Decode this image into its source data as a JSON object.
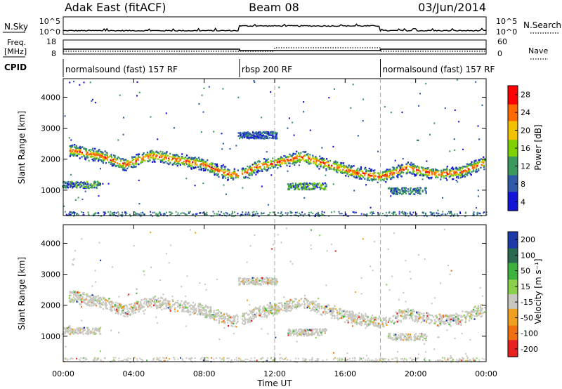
{
  "header": {
    "station": "Adak East (fitACF)",
    "beam": "Beam 08",
    "date": "03/Jun/2014"
  },
  "left_labels": {
    "nsky": "N.Sky",
    "freq": "Freq.",
    "freq_unit": "[MHz]",
    "cpid": "CPID"
  },
  "right_labels": {
    "nsearch": "N.Search",
    "nave": "Nave"
  },
  "noise_panel": {
    "left_ticks": [
      "10^5",
      "10^0"
    ],
    "right_ticks": [
      "10^5",
      "10^0"
    ]
  },
  "freq_panel": {
    "left_ticks": [
      "18",
      "8"
    ],
    "right_ticks": [
      "60",
      "0"
    ]
  },
  "cpid_segments": [
    {
      "label": "normalsound (fast) 157 RF",
      "start_h": 0,
      "end_h": 10
    },
    {
      "label": "rbsp 200 RF",
      "start_h": 10,
      "end_h": 18
    },
    {
      "label": "normalsound (fast) 157 RF",
      "start_h": 18,
      "end_h": 24
    }
  ],
  "panels": {
    "power": {
      "ylabel": "Slant Range [km]",
      "cbar_label": "Power [dB]",
      "cbar_ticks": [
        "28",
        "24",
        "20",
        "16",
        "12",
        "8",
        "4"
      ]
    },
    "velocity": {
      "ylabel": "Slant Range [km]",
      "cbar_label": "Velocity [m s⁻¹]",
      "cbar_ticks": [
        "200",
        "100",
        "50",
        "15",
        "-15",
        "-50",
        "-100",
        "-200"
      ]
    }
  },
  "range_ticks": [
    "1000",
    "2000",
    "3000",
    "4000"
  ],
  "time_ticks": [
    "00:00",
    "04:00",
    "08:00",
    "12:00",
    "16:00",
    "20:00",
    "00:00"
  ],
  "xlabel": "Time UT",
  "colors": {
    "power_scale": [
      "#ff0000",
      "#ff6a00",
      "#f2c200",
      "#7fd000",
      "#3a9a5e",
      "#2e5aa8",
      "#1414d8"
    ],
    "velocity_scale": [
      "#1c3aa8",
      "#2a6a50",
      "#3db23d",
      "#8ad04a",
      "#c8c8c0",
      "#f0a020",
      "#f07010",
      "#e82020"
    ]
  },
  "chart_data": {
    "type": "heatmap",
    "x_label": "Time UT",
    "x_range_h": [
      0,
      24
    ],
    "y_label": "Slant Range [km]",
    "y_range_km": [
      180,
      4600
    ],
    "frequency_mhz": {
      "before_10": 11.5,
      "10_to_18": 10.5,
      "after_18": 11.5
    },
    "noise_sky_log10": {
      "before_10": 0.8,
      "10_to_18": 2.4,
      "after_18": 0.8
    },
    "backscatter_band": [
      {
        "time_h": 0.5,
        "range_km": 2300
      },
      {
        "time_h": 2.0,
        "range_km": 2150
      },
      {
        "time_h": 3.5,
        "range_km": 1850
      },
      {
        "time_h": 5.0,
        "range_km": 2150
      },
      {
        "time_h": 6.5,
        "range_km": 2000
      },
      {
        "time_h": 8.0,
        "range_km": 1850
      },
      {
        "time_h": 9.0,
        "range_km": 1600
      },
      {
        "time_h": 10.0,
        "range_km": 1500
      },
      {
        "time_h": 11.0,
        "range_km": 1800
      },
      {
        "time_h": 12.0,
        "range_km": 1900
      },
      {
        "time_h": 13.5,
        "range_km": 2100
      },
      {
        "time_h": 15.0,
        "range_km": 1850
      },
      {
        "time_h": 16.5,
        "range_km": 1600
      },
      {
        "time_h": 18.0,
        "range_km": 1450
      },
      {
        "time_h": 19.5,
        "range_km": 1750
      },
      {
        "time_h": 21.0,
        "range_km": 1550
      },
      {
        "time_h": 22.5,
        "range_km": 1600
      },
      {
        "time_h": 23.8,
        "range_km": 1900
      }
    ]
  }
}
